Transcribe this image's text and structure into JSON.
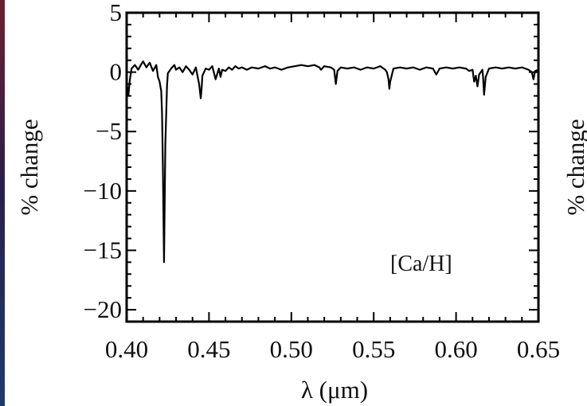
{
  "chart_data": {
    "type": "line",
    "title": "",
    "xlabel": "λ (μm)",
    "ylabel": "% change",
    "annotation": "[Ca/H]",
    "second_panel_ylabel": "% change",
    "xlim": [
      0.4,
      0.65
    ],
    "ylim": [
      -21,
      5
    ],
    "x_ticks": [
      0.4,
      0.45,
      0.5,
      0.55,
      0.6,
      0.65
    ],
    "x_tick_labels": [
      "0.40",
      "0.45",
      "0.50",
      "0.55",
      "0.60",
      "0.65"
    ],
    "y_ticks": [
      5,
      0,
      -5,
      -10,
      -15,
      -20
    ],
    "y_tick_labels": [
      "5",
      "0",
      "−5",
      "−10",
      "−15",
      "−20"
    ],
    "grid": false,
    "series": [
      {
        "color": "#000000",
        "x": [
          0.4,
          0.401,
          0.402,
          0.403,
          0.405,
          0.407,
          0.409,
          0.41,
          0.412,
          0.414,
          0.416,
          0.418,
          0.419,
          0.42,
          0.421,
          0.4215,
          0.422,
          0.4227,
          0.4235,
          0.4245,
          0.425,
          0.427,
          0.429,
          0.43,
          0.432,
          0.434,
          0.436,
          0.438,
          0.44,
          0.442,
          0.444,
          0.445,
          0.4455,
          0.446,
          0.448,
          0.45,
          0.452,
          0.454,
          0.456,
          0.457,
          0.458,
          0.46,
          0.462,
          0.464,
          0.466,
          0.468,
          0.47,
          0.473,
          0.476,
          0.48,
          0.484,
          0.487,
          0.49,
          0.494,
          0.498,
          0.502,
          0.506,
          0.51,
          0.514,
          0.517,
          0.518,
          0.52,
          0.524,
          0.526,
          0.527,
          0.528,
          0.53,
          0.534,
          0.538,
          0.542,
          0.546,
          0.55,
          0.554,
          0.557,
          0.558,
          0.559,
          0.5595,
          0.56,
          0.562,
          0.566,
          0.57,
          0.574,
          0.578,
          0.582,
          0.586,
          0.588,
          0.59,
          0.594,
          0.598,
          0.602,
          0.606,
          0.608,
          0.61,
          0.611,
          0.612,
          0.613,
          0.614,
          0.616,
          0.6165,
          0.617,
          0.618,
          0.62,
          0.624,
          0.628,
          0.632,
          0.636,
          0.64,
          0.644,
          0.646,
          0.647,
          0.648,
          0.65
        ],
        "y": [
          -0.8,
          -2.0,
          -0.6,
          0.3,
          0.6,
          0.2,
          0.7,
          0.9,
          0.4,
          0.8,
          0.1,
          0.6,
          -0.4,
          -0.8,
          -1.6,
          -3.5,
          -8.0,
          -16.0,
          -6.0,
          -1.2,
          -0.1,
          0.3,
          0.6,
          0.2,
          0.4,
          0.0,
          0.5,
          0.2,
          -0.2,
          0.4,
          -1.0,
          -2.2,
          -1.4,
          -0.3,
          0.3,
          0.2,
          0.5,
          -0.6,
          0.3,
          -0.4,
          0.2,
          0.1,
          0.4,
          0.2,
          0.5,
          0.3,
          0.4,
          0.2,
          0.4,
          0.3,
          0.5,
          0.3,
          0.4,
          0.2,
          0.4,
          0.5,
          0.6,
          0.5,
          0.6,
          0.4,
          0.2,
          0.5,
          0.4,
          0.2,
          -1.0,
          0.1,
          0.4,
          0.3,
          0.4,
          0.2,
          0.4,
          0.3,
          0.5,
          0.2,
          0.0,
          -0.6,
          -1.4,
          -0.8,
          0.3,
          0.4,
          0.3,
          0.4,
          0.2,
          0.4,
          0.3,
          -0.2,
          0.3,
          0.4,
          0.3,
          0.4,
          0.3,
          0.1,
          0.2,
          -0.8,
          -0.3,
          -1.2,
          -0.2,
          0.2,
          -0.6,
          -1.9,
          -0.4,
          0.3,
          0.4,
          0.3,
          0.4,
          0.3,
          0.4,
          0.2,
          0.0,
          -0.6,
          0.1,
          0.2
        ]
      }
    ]
  }
}
